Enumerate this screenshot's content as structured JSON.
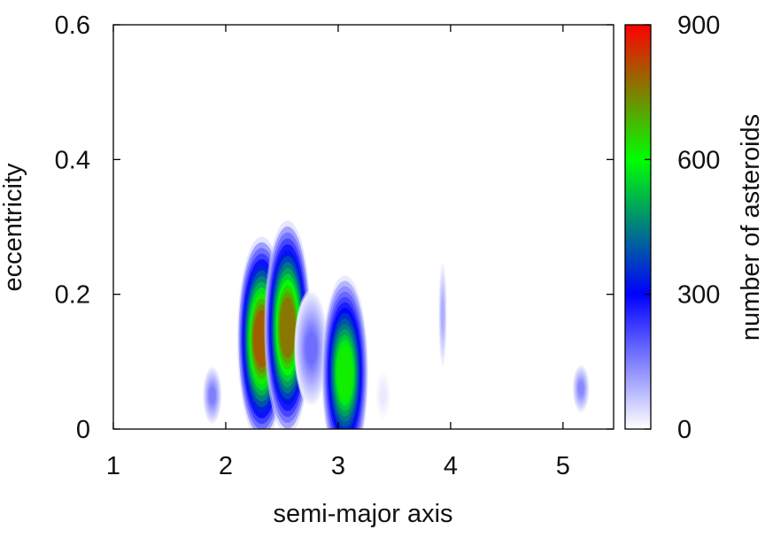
{
  "chart_data": {
    "type": "heatmap",
    "title": "",
    "xlabel": "semi-major axis",
    "ylabel": "eccentricity",
    "xlim": [
      1,
      5.45
    ],
    "ylim": [
      0,
      0.6
    ],
    "x_ticks": [
      {
        "value": 1,
        "label": "1"
      },
      {
        "value": 2,
        "label": "2"
      },
      {
        "value": 3,
        "label": "3"
      },
      {
        "value": 4,
        "label": "4"
      },
      {
        "value": 5,
        "label": "5"
      }
    ],
    "y_ticks": [
      {
        "value": 0,
        "label": "0"
      },
      {
        "value": 0.2,
        "label": "0.2"
      },
      {
        "value": 0.4,
        "label": "0.4"
      },
      {
        "value": 0.6,
        "label": "0.6"
      }
    ],
    "colorbar": {
      "label": "number of asteroids",
      "range": [
        0,
        900
      ],
      "ticks": [
        {
          "value": 0,
          "label": "0"
        },
        {
          "value": 300,
          "label": "300"
        },
        {
          "value": 600,
          "label": "600"
        },
        {
          "value": 900,
          "label": "900"
        }
      ],
      "colors": [
        "#ffffff",
        "#0000ff",
        "#00ff00",
        "#ff0000"
      ]
    },
    "grid": false,
    "density_clusters": [
      {
        "a": 1.88,
        "e": 0.05,
        "peak": 150
      },
      {
        "a": 2.32,
        "e": 0.13,
        "peak": 790
      },
      {
        "a": 2.55,
        "e": 0.14,
        "peak": 760
      },
      {
        "a": 2.76,
        "e": 0.12,
        "peak": 170
      },
      {
        "a": 3.06,
        "e": 0.09,
        "peak": 620
      },
      {
        "a": 3.4,
        "e": 0.05,
        "peak": 25
      },
      {
        "a": 3.93,
        "e": 0.17,
        "peak": 95
      },
      {
        "a": 5.16,
        "e": 0.06,
        "peak": 140
      }
    ]
  }
}
